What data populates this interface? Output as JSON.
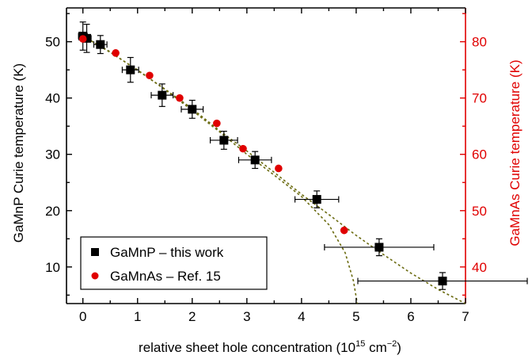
{
  "chart_data": {
    "type": "scatter",
    "xlabel_main": "relative sheet hole concentration (10",
    "xlabel_exp": "15",
    "xlabel_unit": " cm",
    "xlabel_unit_exp": "−2",
    "xlabel_close": ")",
    "ylabel_left": "GaMnP Curie temperature (K)",
    "ylabel_right": "GaMnAs Curie temperature (K)",
    "xlim": [
      -0.3,
      7
    ],
    "ylim_left": [
      3.5,
      56
    ],
    "ylim_right": [
      33.5,
      86
    ],
    "x_ticks": [
      "0",
      "1",
      "2",
      "3",
      "4",
      "5",
      "6",
      "7"
    ],
    "y_left_ticks": [
      "10",
      "20",
      "30",
      "40",
      "50"
    ],
    "y_right_ticks": [
      "40",
      "50",
      "60",
      "70",
      "80"
    ],
    "legend_position": "bottom-left",
    "colors": {
      "primary": "#000000",
      "secondary": "#e00000",
      "fit": "#6b6b10"
    },
    "series": [
      {
        "name": "GaMnP – this work",
        "marker": "square",
        "axis": "left",
        "points": [
          {
            "x": 0.0,
            "y": 51.0,
            "xerr": 0.08,
            "yerr": 2.5
          },
          {
            "x": 0.07,
            "y": 50.6,
            "xerr": 0.08,
            "yerr": 2.5
          },
          {
            "x": 0.32,
            "y": 49.5,
            "xerr": 0.12,
            "yerr": 1.6
          },
          {
            "x": 0.87,
            "y": 45.0,
            "xerr": 0.15,
            "yerr": 2.2
          },
          {
            "x": 1.45,
            "y": 40.5,
            "xerr": 0.2,
            "yerr": 2.0
          },
          {
            "x": 2.0,
            "y": 38.0,
            "xerr": 0.2,
            "yerr": 1.6
          },
          {
            "x": 2.58,
            "y": 32.5,
            "xerr": 0.25,
            "yerr": 1.6
          },
          {
            "x": 3.15,
            "y": 29.0,
            "xerr": 0.3,
            "yerr": 1.5
          },
          {
            "x": 4.28,
            "y": 22.0,
            "xerr": 0.4,
            "yerr": 1.5
          },
          {
            "x": 5.42,
            "y": 13.5,
            "xerr": 1.0,
            "yerr": 1.5
          },
          {
            "x": 6.58,
            "y": 7.5,
            "xerr": 1.55,
            "yerr": 1.5
          }
        ]
      },
      {
        "name": "GaMnAs – Ref. 15",
        "marker": "circle",
        "axis": "right",
        "points": [
          {
            "x": 0.0,
            "y": 80.5
          },
          {
            "x": 0.6,
            "y": 78.0
          },
          {
            "x": 1.22,
            "y": 74.0
          },
          {
            "x": 1.77,
            "y": 70.0
          },
          {
            "x": 2.45,
            "y": 65.5
          },
          {
            "x": 2.93,
            "y": 61.0
          },
          {
            "x": 3.58,
            "y": 57.5
          },
          {
            "x": 4.78,
            "y": 46.5
          }
        ]
      }
    ],
    "fit_curves": [
      {
        "axis": "left",
        "points": [
          [
            0,
            51.0
          ],
          [
            0.5,
            48.2
          ],
          [
            1.0,
            44.9
          ],
          [
            1.5,
            41.6
          ],
          [
            2.0,
            38.1
          ],
          [
            2.5,
            34.2
          ],
          [
            3.0,
            30.6
          ],
          [
            3.5,
            26.8
          ],
          [
            4.0,
            22.9
          ],
          [
            4.5,
            19.3
          ],
          [
            5.0,
            15.6
          ],
          [
            5.5,
            12.2
          ],
          [
            6.0,
            8.9
          ],
          [
            6.5,
            6.0
          ],
          [
            7.0,
            3.5
          ]
        ]
      },
      {
        "axis": "left",
        "points": [
          [
            0,
            51.0
          ],
          [
            0.5,
            48.1
          ],
          [
            1.0,
            45.0
          ],
          [
            1.5,
            41.5
          ],
          [
            2.0,
            37.8
          ],
          [
            2.5,
            34.0
          ],
          [
            3.0,
            30.0
          ],
          [
            3.5,
            26.3
          ],
          [
            4.0,
            22.5
          ],
          [
            4.5,
            17.5
          ],
          [
            4.8,
            12.5
          ],
          [
            4.95,
            7.5
          ],
          [
            5.02,
            3.5
          ]
        ]
      }
    ]
  }
}
